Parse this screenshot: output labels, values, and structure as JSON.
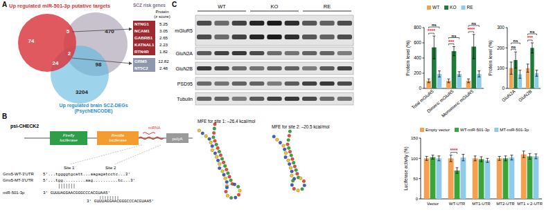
{
  "panel_labels": [
    "A",
    "B",
    "C"
  ],
  "venn": {
    "red_label": "Up regulated miR-501-3p putative targets",
    "gray_label": "SCZ risk genes",
    "blue_label": [
      "Up regulated brain SCZ-DEGs",
      "(PsychENCODE)"
    ],
    "regions": {
      "targets_only": 74,
      "targets_risk": 5,
      "risk_only": 470,
      "targets_degs": 24,
      "all_three": 2,
      "risk_degs": 98,
      "degs_only": 3204
    }
  },
  "gene_table": {
    "header": [
      "Protein",
      "(z score)"
    ],
    "groups": [
      {
        "color": "#9e2a2f",
        "rows": [
          [
            "NTNG1",
            5.25
          ],
          [
            "NCAM1",
            3.05
          ],
          [
            "GABRB1",
            2.65
          ],
          [
            "KATNAL1",
            2.23
          ],
          [
            "RTN4R",
            1.82
          ]
        ]
      },
      {
        "color": "#8e98ad",
        "rows": [
          [
            "GRM5",
            12.82
          ],
          [
            "NT5C2",
            2.48
          ]
        ]
      }
    ]
  },
  "construct": {
    "vector": "psi-CHECK2",
    "firefly": [
      "Firefly",
      "luciferase"
    ],
    "renilla": [
      "Renilla",
      "luciferase"
    ],
    "mirna": "miRNA",
    "polya": "polyA",
    "site_labels": [
      "Site 1",
      "Site 2"
    ],
    "sequences": [
      {
        "name": "Grm5-WT-3'UTR",
        "seq": "5'...tggggtgcatt...aagagatcctc...3'"
      },
      {
        "name": "Grm5-MT-3'UTR",
        "seq": "5'...tgg.........aag..........tc...3'"
      }
    ],
    "mirna_name": "miR-501-3p",
    "mirna_seqs": [
      "3' GUUUAGGAACGGGCCCACGUAA5'",
      "3' GUUUAGGAACGGGCCCACGUAA5'"
    ]
  },
  "structures": {
    "mfe": [
      "MFE for site 1: –26.4 kcal/mol",
      "MFE for site 2: –20.5 kcal/mol"
    ]
  },
  "blot": {
    "groups": [
      "WT",
      "KO",
      "RE"
    ],
    "rows": [
      "mGluR5",
      "GluN2A",
      "GluN2B",
      "PSD95",
      "Tubulin"
    ]
  },
  "chart_data": [
    {
      "type": "bar",
      "y_label": "Luciferase activity (%)",
      "categories": [
        "Vector",
        "WT-UTR",
        "MT1-UTR",
        "MT2-UTR",
        "MT1 + 2-UTR"
      ],
      "series": [
        {
          "name": "Empty vector",
          "color": "#f5a051",
          "values": [
            100,
            100,
            100,
            100,
            110
          ],
          "errors": [
            5,
            8,
            6,
            5,
            8
          ]
        },
        {
          "name": "WT-miR-501-3p",
          "color": "#3aa53a",
          "values": [
            103,
            70,
            98,
            100,
            105
          ],
          "errors": [
            5,
            7,
            6,
            6,
            7
          ]
        },
        {
          "name": "MT-miR-501-3p",
          "color": "#8ecbe8",
          "values": [
            100,
            102,
            95,
            102,
            105
          ],
          "errors": [
            6,
            8,
            5,
            6,
            6
          ]
        }
      ],
      "ylim": [
        0,
        150
      ],
      "yticks": [
        0,
        50,
        100,
        150
      ],
      "legend": "top",
      "annotations": [
        {
          "text": "****",
          "category": 1,
          "series": [
            0,
            1
          ],
          "color": "#e8202a"
        }
      ]
    },
    {
      "type": "bar",
      "y_label": "Protein level (%)",
      "categories": [
        "Total mGluR5",
        "Dimeric mGluR5",
        "Monomeric mGluR5"
      ],
      "series": [
        {
          "name": "WT",
          "color": "#f5a051",
          "values": [
            100,
            100,
            100
          ],
          "errors": [
            25,
            25,
            25
          ]
        },
        {
          "name": "KO",
          "color": "#1e7b3c",
          "values": [
            540,
            490,
            550
          ],
          "errors": [
            150,
            60,
            160
          ]
        },
        {
          "name": "RE",
          "color": "#8ecbe8",
          "values": [
            190,
            190,
            190
          ],
          "errors": [
            40,
            30,
            40
          ]
        }
      ],
      "ylim": [
        0,
        800
      ],
      "yticks": [
        0,
        200,
        400,
        600,
        800
      ],
      "legend": "top",
      "annotations": [
        {
          "text": "****",
          "category": 0,
          "series": [
            0,
            1
          ],
          "color": "#e8202a"
        },
        {
          "text": "ns",
          "category": 0,
          "series": [
            0,
            2
          ],
          "color": "#000000"
        },
        {
          "text": "***",
          "category": 1,
          "series": [
            0,
            1
          ],
          "color": "#e8202a"
        },
        {
          "text": "ns",
          "category": 1,
          "series": [
            0,
            2
          ],
          "color": "#000000"
        },
        {
          "text": "****",
          "category": 2,
          "series": [
            0,
            1
          ],
          "color": "#e8202a"
        },
        {
          "text": "ns",
          "category": 2,
          "series": [
            0,
            2
          ],
          "color": "#000000"
        }
      ]
    },
    {
      "type": "bar",
      "y_label": "Protein level (%)",
      "categories": [
        "GluN2A",
        "GluN2B"
      ],
      "series": [
        {
          "color": "#f5a051",
          "values": [
            100,
            100
          ],
          "errors": [
            30,
            20
          ]
        },
        {
          "color": "#1e7b3c",
          "values": [
            140,
            200
          ],
          "errors": [
            40,
            25
          ]
        },
        {
          "color": "#8ecbe8",
          "values": [
            70,
            75
          ],
          "errors": [
            20,
            15
          ]
        }
      ],
      "ylim": [
        0,
        300
      ],
      "yticks": [
        0,
        100,
        200,
        300
      ],
      "annotations": [
        {
          "text": "ns",
          "category": 0,
          "series": [
            0,
            1
          ],
          "color": "#000000"
        },
        {
          "text": "ns",
          "category": 0,
          "series": [
            0,
            2
          ],
          "color": "#000000"
        },
        {
          "text": "***",
          "category": 1,
          "series": [
            0,
            1
          ],
          "color": "#e8202a"
        },
        {
          "text": "ns",
          "category": 1,
          "series": [
            0,
            2
          ],
          "color": "#000000"
        }
      ]
    }
  ]
}
